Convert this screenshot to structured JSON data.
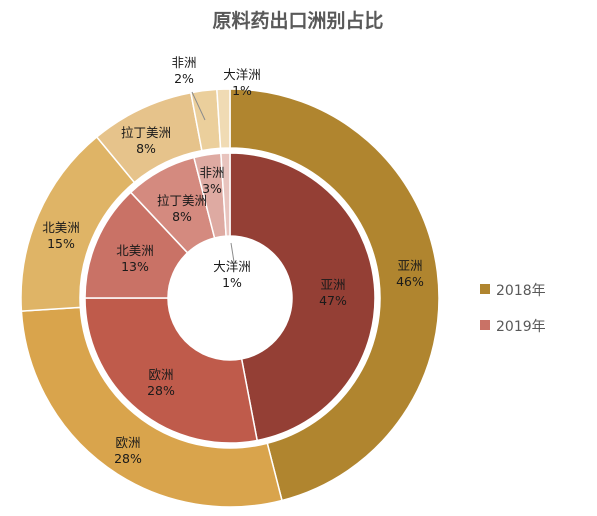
{
  "chart_data": {
    "type": "pie",
    "title": "原料药出口洲别占比",
    "categories": [
      "亚洲",
      "欧洲",
      "北美洲",
      "拉丁美洲",
      "非洲",
      "大洋洲"
    ],
    "series": [
      {
        "name": "2018年",
        "ring": "outer",
        "values": [
          46,
          28,
          15,
          8,
          2,
          1
        ],
        "labels": [
          "46%",
          "28%",
          "15%",
          "8%",
          "2%",
          "1%"
        ],
        "colors": [
          "#b0852f",
          "#d9a44c",
          "#dfb466",
          "#e6c38b",
          "#ebcf9c",
          "#f0dbb4"
        ]
      },
      {
        "name": "2019年",
        "ring": "inner",
        "values": [
          47,
          28,
          13,
          8,
          3,
          1
        ],
        "labels": [
          "47%",
          "28%",
          "13%",
          "8%",
          "3%",
          "1%"
        ],
        "colors": [
          "#943f35",
          "#bf5b4b",
          "#c97266",
          "#d48a7f",
          "#deaaa2",
          "#e8c4be"
        ]
      }
    ],
    "legend": {
      "position": "right",
      "entries": [
        {
          "label": "2018年",
          "color": "#b0852f"
        },
        {
          "label": "2019年",
          "color": "#c97266"
        }
      ]
    }
  }
}
